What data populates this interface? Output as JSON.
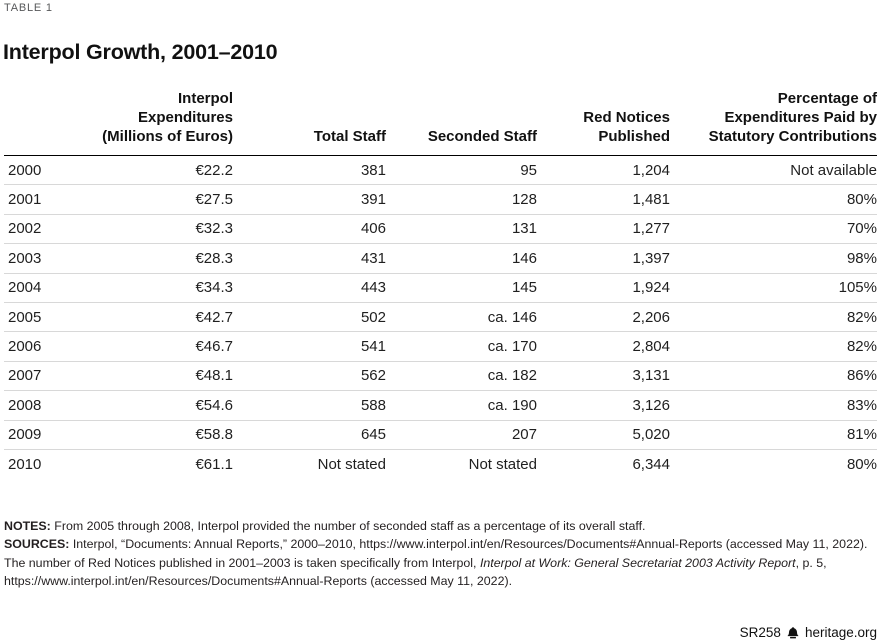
{
  "eyebrow": "TABLE 1",
  "title": "Interpol Growth, 2001–2010",
  "table": {
    "columns": [
      {
        "label": ""
      },
      {
        "label": "Interpol\nExpenditures\n(Millions of Euros)"
      },
      {
        "label": "Total Staff"
      },
      {
        "label": "Seconded Staff"
      },
      {
        "label": "Red Notices\nPublished"
      },
      {
        "label": "Percentage of\nExpenditures Paid by\nStatutory Contributions"
      }
    ],
    "rows": [
      [
        "2000",
        "€22.2",
        "381",
        "95",
        "1,204",
        "Not available"
      ],
      [
        "2001",
        "€27.5",
        "391",
        "128",
        "1,481",
        "80%"
      ],
      [
        "2002",
        "€32.3",
        "406",
        "131",
        "1,277",
        "70%"
      ],
      [
        "2003",
        "€28.3",
        "431",
        "146",
        "1,397",
        "98%"
      ],
      [
        "2004",
        "€34.3",
        "443",
        "145",
        "1,924",
        "105%"
      ],
      [
        "2005",
        "€42.7",
        "502",
        "ca. 146",
        "2,206",
        "82%"
      ],
      [
        "2006",
        "€46.7",
        "541",
        "ca. 170",
        "2,804",
        "82%"
      ],
      [
        "2007",
        "€48.1",
        "562",
        "ca. 182",
        "3,131",
        "86%"
      ],
      [
        "2008",
        "€54.6",
        "588",
        "ca. 190",
        "3,126",
        "83%"
      ],
      [
        "2009",
        "€58.8",
        "645",
        "207",
        "5,020",
        "81%"
      ],
      [
        "2010",
        "€61.1",
        "Not stated",
        "Not stated",
        "6,344",
        "80%"
      ]
    ]
  },
  "notes": {
    "notes_label": "NOTES:",
    "notes_text": " From 2005 through 2008, Interpol provided the number of seconded staff as a percentage of its overall staff.",
    "sources_label": "SOURCES:",
    "sources_text_1": " Interpol, “Documents: Annual Reports,” 2000–2010, https://www.interpol.int/en/Resources/Documents#Annual-Reports (accessed May 11, 2022). The number of Red Notices published in 2001–2003 is taken specifically from Interpol, ",
    "sources_italic": "Interpol at Work: General Secretariat 2003 Activity Report",
    "sources_text_2": ", p. 5, https://www.interpol.int/en/Resources/Documents#Annual-Reports (accessed May 11, 2022)."
  },
  "footer": {
    "report_id": "SR258",
    "site": "heritage.org",
    "logo_icon": "liberty-bell-icon"
  },
  "colors": {
    "text": "#1a1a1a",
    "eyebrow_gray": "#57585a",
    "row_divider": "#d8d8d8",
    "header_rule": "#000000",
    "background": "#ffffff"
  }
}
